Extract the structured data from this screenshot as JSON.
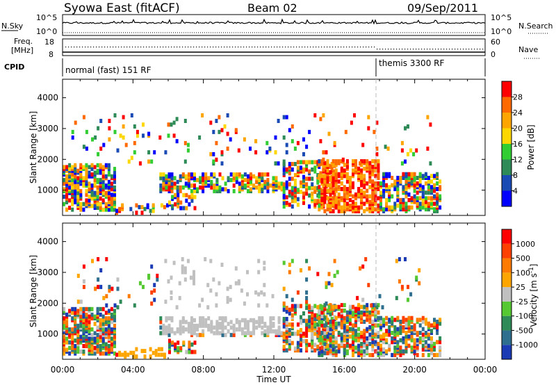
{
  "header": {
    "station": "Syowa East (fitACF)",
    "beam": "Beam 02",
    "date": "09/Sep/2011"
  },
  "panels": {
    "nsky_label": "N.Sky",
    "nsky_ticks": [
      "10^5",
      "10^0"
    ],
    "nsearch_label": "N.Search",
    "nsearch_ticks": [
      "10^5",
      "10^0"
    ],
    "freq_label_1": "Freq.",
    "freq_label_2": "[MHz]",
    "freq_ticks": [
      "18",
      "8"
    ],
    "nave_label": "Nave",
    "nave_ticks": [
      "60",
      "0"
    ],
    "cpid_label": "CPID",
    "cpid_segments": [
      {
        "label": "normal (fast) 151 RF",
        "start_hour": 0
      },
      {
        "label": "themis 3300 RF",
        "start_hour": 18
      }
    ]
  },
  "chart_data": [
    {
      "type": "heatmap",
      "title": "",
      "xlabel": "Time UT",
      "ylabel": "Slant Range [km]",
      "xlim": [
        0,
        24
      ],
      "ylim": [
        180,
        4600
      ],
      "x_ticks": [
        "00:00",
        "04:00",
        "08:00",
        "12:00",
        "16:00",
        "20:00",
        "00:00"
      ],
      "y_ticks": [
        1000,
        2000,
        3000,
        4000
      ],
      "colorbar": {
        "label": "Power [dB]",
        "ticks": [
          "4",
          "8",
          "12",
          "16",
          "20",
          "24",
          "28"
        ],
        "colors": [
          "#0000ff",
          "#1a4ab4",
          "#2e8b57",
          "#32cd32",
          "#ffd700",
          "#ffa500",
          "#ff6a00",
          "#ff0000"
        ]
      }
    },
    {
      "type": "heatmap",
      "title": "",
      "xlabel": "Time UT",
      "ylabel": "Slant Range [km]",
      "xlim": [
        0,
        24
      ],
      "ylim": [
        180,
        4600
      ],
      "x_ticks": [
        "00:00",
        "04:00",
        "08:00",
        "12:00",
        "16:00",
        "20:00",
        "00:00"
      ],
      "y_ticks": [
        1000,
        2000,
        3000,
        4000
      ],
      "colorbar": {
        "label": "Velocity [m s^-1]",
        "ticks": [
          "1000",
          "500",
          "100",
          "25",
          "-25",
          "-100",
          "-500",
          "-1000"
        ],
        "colors": [
          "#1a3bb4",
          "#2e6e8e",
          "#2e8b57",
          "#55c832",
          "#c0c0c0",
          "#ffa500",
          "#ff7a00",
          "#ff4000",
          "#ff0000"
        ]
      }
    }
  ]
}
